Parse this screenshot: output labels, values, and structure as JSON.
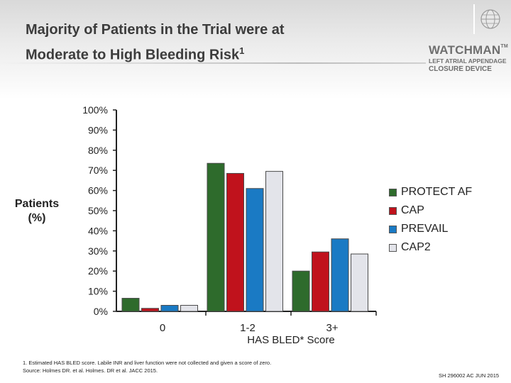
{
  "header": {
    "title_line1": "Majority of Patients in the Trial were at",
    "title_line2": "Moderate to High Bleeding Risk",
    "title_superscript": "1"
  },
  "brand": {
    "name": "WATCHMAN",
    "trademark": "TM",
    "line1": "LEFT ATRIAL APPENDAGE",
    "line2": "CLOSURE DEVICE"
  },
  "y_axis_title": {
    "line1": "Patients",
    "line2": "(%)"
  },
  "chart_data": {
    "type": "bar",
    "title": "",
    "xlabel": "HAS BLED* Score",
    "ylabel": "Patients (%)",
    "categories": [
      "0",
      "1-2",
      "3+"
    ],
    "ylim": [
      0,
      100
    ],
    "yticks": [
      0,
      10,
      20,
      30,
      40,
      50,
      60,
      70,
      80,
      90,
      100
    ],
    "ytick_labels": [
      "0%",
      "10%",
      "20%",
      "30%",
      "40%",
      "50%",
      "60%",
      "70%",
      "80%",
      "90%",
      "100%"
    ],
    "series": [
      {
        "name": "PROTECT AF",
        "color": "#2e6b2c",
        "values": [
          6.5,
          73.5,
          20
        ]
      },
      {
        "name": "CAP",
        "color": "#c0121c",
        "values": [
          1.5,
          68.5,
          29.5
        ]
      },
      {
        "name": "PREVAIL",
        "color": "#1a7ac4",
        "values": [
          3,
          61,
          36
        ]
      },
      {
        "name": "CAP2",
        "color": "#e3e4ea",
        "values": [
          3,
          69.5,
          28.5
        ]
      }
    ],
    "legend_position": "right",
    "grid": false
  },
  "footnote": {
    "line1": "1. Estimated HAS BLED score.  Labile INR and liver function were not collected and given a score of zero.",
    "line2": "Source: Holmes DR. et al. Holmes. DR et al. JACC 2015."
  },
  "doc_id": "SH 296002 AC JUN 2015"
}
